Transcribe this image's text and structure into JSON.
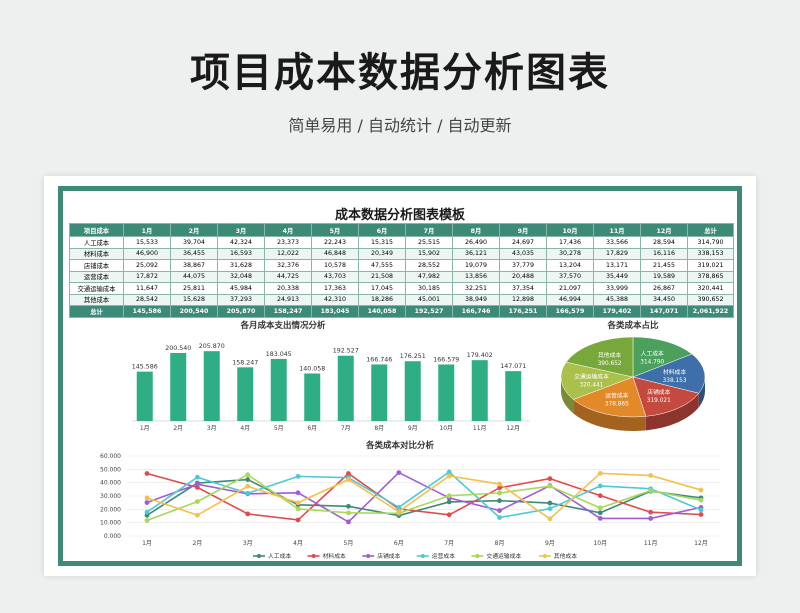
{
  "hero": {
    "title": "项目成本数据分析图表",
    "subtitle": "简单易用 / 自动统计 / 自动更新"
  },
  "sheet": {
    "title": "成本数据分析图表模板"
  },
  "table": {
    "headers": [
      "项目成本",
      "1月",
      "2月",
      "3月",
      "4月",
      "5月",
      "6月",
      "7月",
      "8月",
      "9月",
      "10月",
      "11月",
      "12月",
      "总计"
    ],
    "rows": [
      [
        "人工成本",
        "15,533",
        "39,704",
        "42,324",
        "23,373",
        "22,243",
        "15,315",
        "25,515",
        "26,490",
        "24,697",
        "17,436",
        "33,566",
        "28,594",
        "314,790"
      ],
      [
        "材料成本",
        "46,900",
        "36,455",
        "16,593",
        "12,022",
        "46,848",
        "20,349",
        "15,902",
        "36,121",
        "43,035",
        "30,278",
        "17,829",
        "16,116",
        "338,153"
      ],
      [
        "店铺成本",
        "25,092",
        "38,867",
        "31,628",
        "32,376",
        "10,578",
        "47,555",
        "28,552",
        "19,079",
        "37,779",
        "13,204",
        "13,171",
        "21,455",
        "319,021"
      ],
      [
        "运营成本",
        "17,872",
        "44,075",
        "32,048",
        "44,725",
        "43,703",
        "21,508",
        "47,982",
        "13,856",
        "20,488",
        "37,570",
        "35,449",
        "19,589",
        "378,865"
      ],
      [
        "交通运输成本",
        "11,647",
        "25,811",
        "45,984",
        "20,338",
        "17,363",
        "17,045",
        "30,185",
        "32,251",
        "37,354",
        "21,097",
        "33,999",
        "26,867",
        "320,441"
      ],
      [
        "其他成本",
        "28,542",
        "15,628",
        "37,293",
        "24,913",
        "42,310",
        "18,286",
        "45,001",
        "38,949",
        "12,898",
        "46,994",
        "45,388",
        "34,450",
        "390,652"
      ]
    ],
    "totals": [
      "总计",
      "145,586",
      "200,540",
      "205,870",
      "158,247",
      "183,045",
      "140,058",
      "192,527",
      "166,746",
      "176,251",
      "166,579",
      "179,402",
      "147,071",
      "2,061,922"
    ]
  },
  "chart_data": [
    {
      "type": "bar",
      "title": "各月成本支出情况分析",
      "categories": [
        "1月",
        "2月",
        "3月",
        "4月",
        "5月",
        "6月",
        "7月",
        "8月",
        "9月",
        "10月",
        "11月",
        "12月"
      ],
      "values": [
        145586,
        200540,
        205870,
        158247,
        183045,
        140058,
        192527,
        166746,
        176251,
        166579,
        179402,
        147071
      ],
      "value_labels": [
        "145.586",
        "200.540",
        "205.870",
        "158.247",
        "183.045",
        "140.058",
        "192.527",
        "166.746",
        "176.251",
        "166.579",
        "179.402",
        "147.071"
      ],
      "ylim": [
        0,
        230000
      ],
      "color": "#2fae86",
      "grid": false
    },
    {
      "type": "pie",
      "title": "各类成本占比",
      "style": "3d",
      "slices": [
        {
          "name": "人工成本",
          "value": 314790,
          "label": "314.790",
          "color": "#4aa05c"
        },
        {
          "name": "材料成本",
          "value": 338153,
          "label": "338.153",
          "color": "#3f6fa8"
        },
        {
          "name": "店铺成本",
          "value": 319021,
          "label": "319.021",
          "color": "#c44a3f"
        },
        {
          "name": "运营成本",
          "value": 378865,
          "label": "378.865",
          "color": "#e2892a"
        },
        {
          "name": "交通运输成本",
          "value": 320441,
          "label": "320.441",
          "color": "#a9c14a"
        },
        {
          "name": "其他成本",
          "value": 390652,
          "label": "390.652",
          "color": "#79a83a"
        }
      ]
    },
    {
      "type": "line",
      "title": "各类成本对比分析",
      "x": [
        "1月",
        "2月",
        "3月",
        "4月",
        "5月",
        "6月",
        "7月",
        "8月",
        "9月",
        "10月",
        "11月",
        "12月"
      ],
      "ylim": [
        0,
        60000
      ],
      "yticks": [
        "0.000",
        "10.000",
        "20.000",
        "30.000",
        "40.000",
        "50.000",
        "60.000"
      ],
      "grid": true,
      "legend_position": "bottom",
      "series": [
        {
          "name": "人工成本",
          "color": "#3e8a78",
          "values": [
            15533,
            39704,
            42324,
            23373,
            22243,
            15315,
            25515,
            26490,
            24697,
            17436,
            33566,
            28594
          ]
        },
        {
          "name": "材料成本",
          "color": "#e04b4b",
          "values": [
            46900,
            36455,
            16593,
            12022,
            46848,
            20349,
            15902,
            36121,
            43035,
            30278,
            17829,
            16116
          ]
        },
        {
          "name": "店铺成本",
          "color": "#a15bd6",
          "values": [
            25092,
            38867,
            31628,
            32376,
            10578,
            47555,
            28552,
            19079,
            37779,
            13204,
            13171,
            21455
          ]
        },
        {
          "name": "运营成本",
          "color": "#4ec9d4",
          "values": [
            17872,
            44075,
            32048,
            44725,
            43703,
            21508,
            47982,
            13856,
            20488,
            37570,
            35449,
            19589
          ]
        },
        {
          "name": "交通运输成本",
          "color": "#a6d95a",
          "values": [
            11647,
            25811,
            45984,
            20338,
            17363,
            17045,
            30185,
            32251,
            37354,
            21097,
            33999,
            26867
          ]
        },
        {
          "name": "其他成本",
          "color": "#f2c14e",
          "values": [
            28542,
            15628,
            37293,
            24913,
            42310,
            18286,
            45001,
            38949,
            12898,
            46994,
            45388,
            34450
          ]
        }
      ]
    }
  ]
}
